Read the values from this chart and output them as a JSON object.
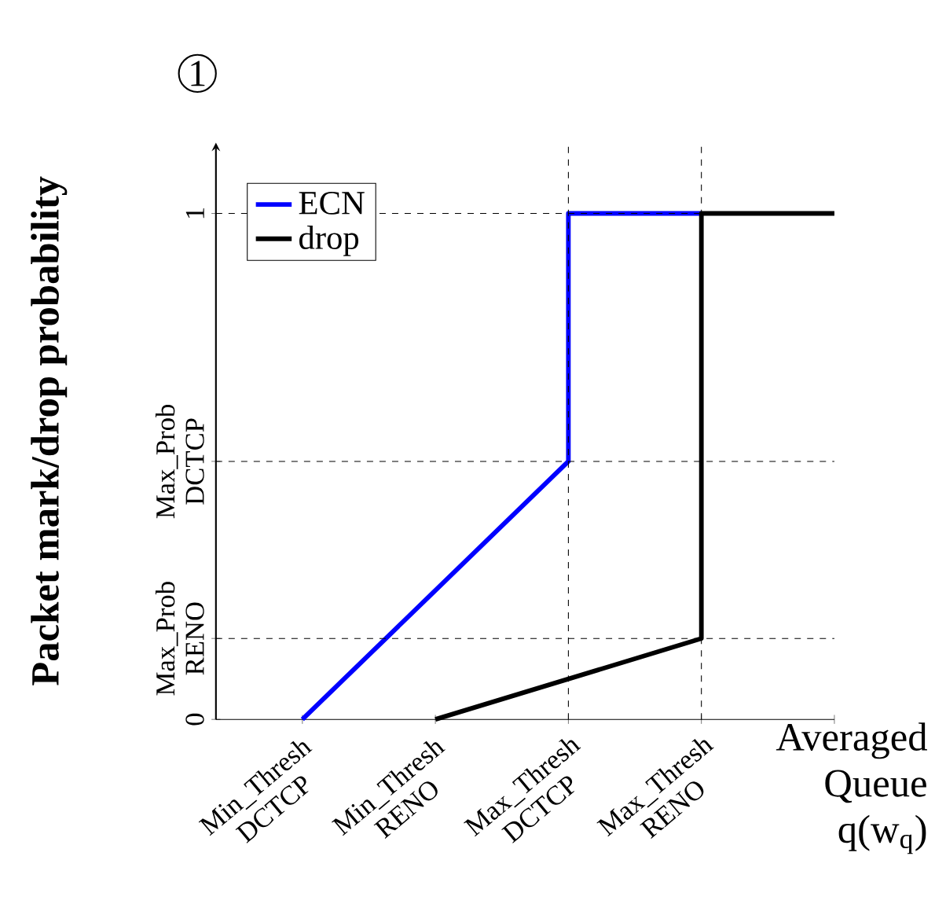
{
  "chart_data": {
    "type": "line",
    "xlabel": "Averaged Queue q(w$_{q}$)",
    "ylabel": "Packet mark/drop probability",
    "annotations": [
      "1"
    ],
    "categories": [
      "Min_Thresh DCTCP",
      "Min_Thresh RENO",
      "Max_Thresh DCTCP",
      "Max_Thresh RENO",
      null
    ],
    "series": [
      {
        "name": "ECN",
        "color": "#0000ff",
        "x": [
          "Min_Thresh DCTCP",
          "Max_Thresh DCTCP",
          "Max_Thresh DCTCP",
          "Max_Thresh RENO"
        ],
        "values": [
          0,
          0.51,
          1,
          1
        ]
      },
      {
        "name": "drop",
        "color": "#000000",
        "x": [
          "Min_Thresh RENO",
          "Max_Thresh RENO",
          "Max_Thresh RENO",
          null
        ],
        "values": [
          0,
          0.16,
          1,
          1
        ]
      }
    ],
    "ylim": [
      0,
      1.14
    ],
    "yticks": [
      0,
      {
        "value": 0.16,
        "label": "Max_Prob RENO"
      },
      {
        "value": 0.51,
        "label": "Max_Prob DCTCP"
      },
      1
    ],
    "ref_lines": [
      {
        "axis": "y",
        "value": 1,
        "color": "#000000",
        "line_style": "dashed"
      },
      {
        "axis": "y",
        "value": 0.51,
        "color": "#000000",
        "line_style": "dashed"
      },
      {
        "axis": "y",
        "value": 0.16,
        "color": "#000000",
        "line_style": "dashed"
      },
      {
        "axis": "x",
        "value": "Max_Thresh DCTCP",
        "color": "#000000",
        "line_style": "dashed"
      },
      {
        "axis": "x",
        "value": "Max_Thresh RENO",
        "color": "#000000",
        "line_style": "dashed"
      }
    ],
    "legend": "top left",
    "marker": "none",
    "line_style": "solid"
  }
}
